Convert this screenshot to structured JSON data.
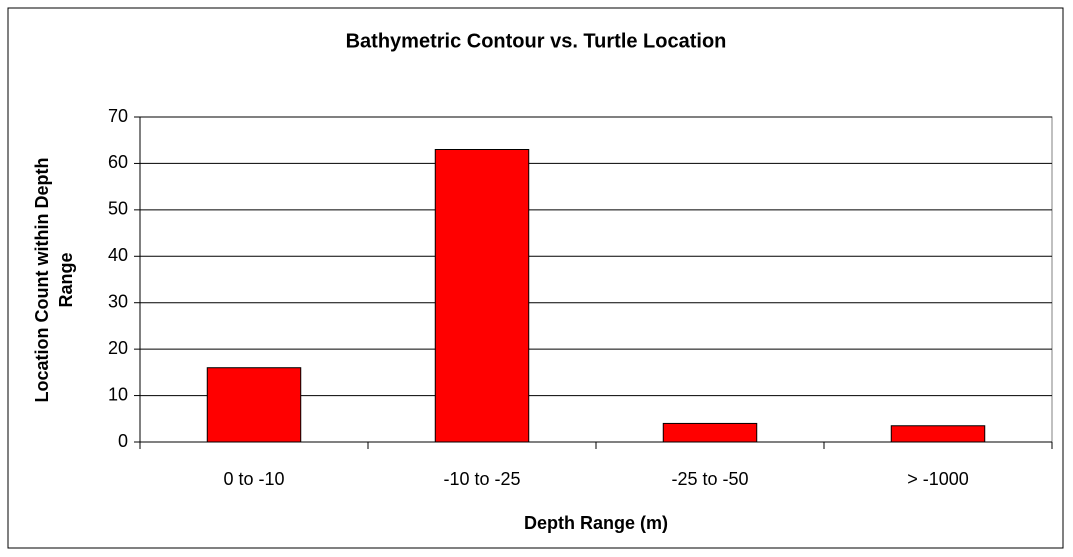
{
  "chart_data": {
    "type": "bar",
    "title": "Bathymetric Contour vs. Turtle Location",
    "xlabel": "Depth Range (m)",
    "ylabel": "Location Count within Depth Range",
    "categories": [
      "0 to -10",
      "-10 to -25",
      "-25 to -50",
      "> -1000"
    ],
    "values": [
      16,
      63,
      4,
      3.5
    ],
    "color": "#ff0000",
    "ylim": [
      0,
      70
    ],
    "yticks": [
      0,
      10,
      20,
      30,
      40,
      50,
      60,
      70
    ],
    "grid": true
  }
}
